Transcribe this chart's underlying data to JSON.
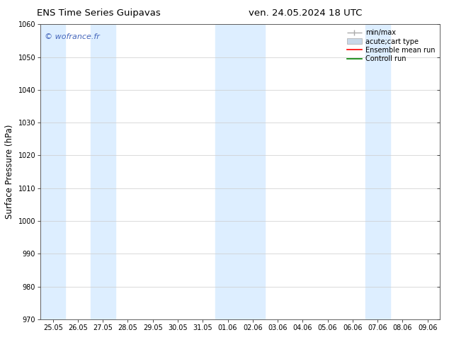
{
  "title_left": "ENS Time Series Guipavas",
  "title_right": "ven. 24.05.2024 18 UTC",
  "ylabel": "Surface Pressure (hPa)",
  "ylim": [
    970,
    1060
  ],
  "yticks": [
    970,
    980,
    990,
    1000,
    1010,
    1020,
    1030,
    1040,
    1050,
    1060
  ],
  "xtick_labels": [
    "25.05",
    "26.05",
    "27.05",
    "28.05",
    "29.05",
    "30.05",
    "31.05",
    "01.06",
    "02.06",
    "03.06",
    "04.06",
    "05.06",
    "06.06",
    "07.06",
    "08.06",
    "09.06"
  ],
  "shaded_columns": [
    0,
    2,
    7,
    8,
    14
  ],
  "watermark": "© wofrance.fr",
  "watermark_color": "#4466bb",
  "bg_color": "#ffffff",
  "plot_bg_color": "#ffffff",
  "grid_color": "#cccccc",
  "band_color": "#ddeeff",
  "tick_font_size": 7,
  "label_font_size": 8.5,
  "title_font_size": 9.5,
  "legend_fontsize": 7,
  "minmax_color": "#aaaaaa",
  "ens_color": "red",
  "ctrl_color": "green"
}
